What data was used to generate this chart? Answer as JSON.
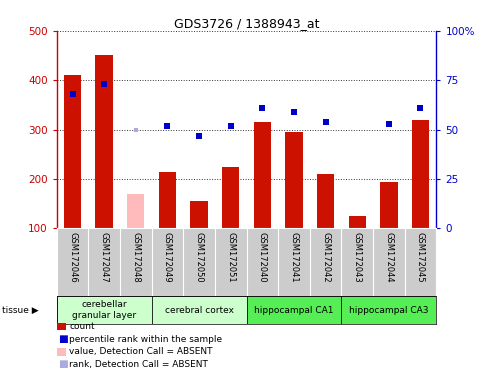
{
  "title": "GDS3726 / 1388943_at",
  "samples": [
    "GSM172046",
    "GSM172047",
    "GSM172048",
    "GSM172049",
    "GSM172050",
    "GSM172051",
    "GSM172040",
    "GSM172041",
    "GSM172042",
    "GSM172043",
    "GSM172044",
    "GSM172045"
  ],
  "count_values": [
    410,
    450,
    null,
    215,
    155,
    225,
    315,
    295,
    210,
    125,
    195,
    320
  ],
  "count_absent": [
    null,
    null,
    170,
    null,
    null,
    null,
    null,
    null,
    null,
    null,
    null,
    null
  ],
  "rank_pct": [
    68,
    73,
    null,
    52,
    47,
    52,
    61,
    59,
    54,
    null,
    53,
    61
  ],
  "rank_absent_pct": [
    null,
    null,
    50,
    null,
    null,
    null,
    null,
    null,
    null,
    null,
    null,
    null
  ],
  "tissue_groups": [
    {
      "label": "cerebellar\ngranular layer",
      "start": 0,
      "end": 3,
      "color": "#ccffcc"
    },
    {
      "label": "cerebral cortex",
      "start": 3,
      "end": 6,
      "color": "#ccffcc"
    },
    {
      "label": "hippocampal CA1",
      "start": 6,
      "end": 9,
      "color": "#55ee55"
    },
    {
      "label": "hippocampal CA3",
      "start": 9,
      "end": 12,
      "color": "#55ee55"
    }
  ],
  "ylim_left": [
    100,
    500
  ],
  "ylim_right": [
    0,
    100
  ],
  "bar_color_present": "#cc1100",
  "bar_color_absent": "#ffbbbb",
  "dot_color_present": "#0000cc",
  "dot_color_absent": "#aaaadd",
  "bar_width": 0.55,
  "background_color": "#ffffff",
  "sample_area_color": "#cccccc",
  "grid_linestyle": "dotted",
  "grid_color": "#555555",
  "left_tick_color": "#cc0000",
  "right_tick_color": "#0000cc"
}
